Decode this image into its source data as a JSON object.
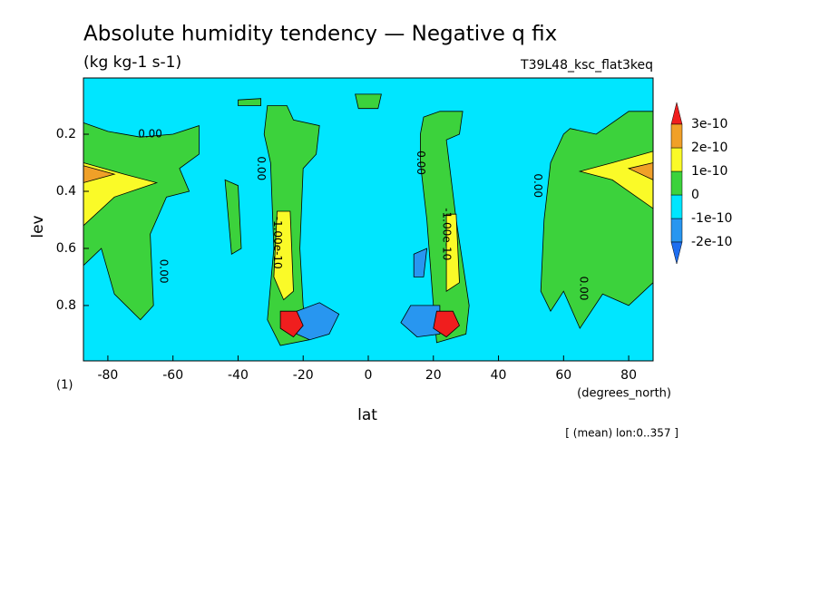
{
  "chart_data": {
    "type": "contour",
    "title": "Absolute humidity tendency — Negative q fix",
    "subtitle": "(kg kg-1 s-1)",
    "run_label": "T39L48_ksc_flat3keq",
    "xlabel": "lat",
    "ylabel": "lev",
    "x_unit": "(degrees_north)",
    "y_unit": "(1)",
    "footer": "[ (mean) lon:0..357 ]",
    "xlim": [
      -87.5,
      87.5
    ],
    "xticks": [
      -80,
      -60,
      -40,
      -20,
      0,
      20,
      40,
      60,
      80
    ],
    "ylim": [
      0.994,
      0.003
    ],
    "yticks": [
      0.2,
      0.4,
      0.6,
      0.8
    ],
    "levels": [
      -2e-10,
      -1e-10,
      0,
      1e-10,
      2e-10,
      3e-10
    ],
    "colors": [
      "#1e6ef0",
      "#2896f0",
      "#00e6ff",
      "#3cd23c",
      "#fafa28",
      "#f0a028",
      "#f01e1e"
    ],
    "regions": [
      {
        "value": -1e-10,
        "lat": [
          -87.5,
          87.5,
          87.5,
          -87.5
        ],
        "lev": [
          0.003,
          0.003,
          0.994,
          0.994
        ]
      },
      {
        "value": 0,
        "lat": [
          -87.5,
          -80,
          -70,
          -60,
          -52,
          -52,
          -58,
          -55,
          -62,
          -67,
          -66,
          -70,
          -78,
          -82,
          -87.5
        ],
        "lev": [
          0.16,
          0.19,
          0.21,
          0.2,
          0.17,
          0.27,
          0.32,
          0.4,
          0.42,
          0.55,
          0.8,
          0.85,
          0.76,
          0.6,
          0.66
        ]
      },
      {
        "value": 1e-10,
        "lat": [
          -87.5,
          -75,
          -65,
          -78,
          -87.5
        ],
        "lev": [
          0.3,
          0.34,
          0.37,
          0.42,
          0.52
        ]
      },
      {
        "value": 2e-10,
        "lat": [
          -87.5,
          -78,
          -87.5
        ],
        "lev": [
          0.31,
          0.34,
          0.37
        ]
      },
      {
        "value": 0,
        "lat": [
          -44,
          -40,
          -39,
          -42
        ],
        "lev": [
          0.36,
          0.38,
          0.6,
          0.62
        ]
      },
      {
        "value": 0,
        "lat": [
          -40,
          -33,
          -33,
          -40
        ],
        "lev": [
          0.08,
          0.075,
          0.1,
          0.1
        ]
      },
      {
        "value": 0,
        "lat": [
          -4,
          4,
          3,
          -3
        ],
        "lev": [
          0.06,
          0.06,
          0.11,
          0.11
        ]
      },
      {
        "value": 0,
        "lat": [
          -31,
          -25,
          -23,
          -15,
          -16,
          -20,
          -21,
          -20,
          -18,
          -27,
          -31,
          -29,
          -30,
          -32
        ],
        "lev": [
          0.1,
          0.1,
          0.15,
          0.17,
          0.27,
          0.32,
          0.6,
          0.8,
          0.92,
          0.94,
          0.85,
          0.6,
          0.3,
          0.2
        ]
      },
      {
        "value": 1e-10,
        "lat": [
          -28,
          -24,
          -23,
          -26,
          -29
        ],
        "lev": [
          0.47,
          0.47,
          0.75,
          0.78,
          0.7
        ]
      },
      {
        "value": -2e-10,
        "lat": [
          -22,
          -15,
          -9,
          -12,
          -18,
          -22
        ],
        "lev": [
          0.82,
          0.79,
          0.83,
          0.9,
          0.92,
          0.9
        ]
      },
      {
        "value": 3e-10,
        "lat": [
          -27,
          -22,
          -20,
          -23,
          -27
        ],
        "lev": [
          0.82,
          0.82,
          0.87,
          0.91,
          0.88
        ]
      },
      {
        "value": 0,
        "lat": [
          17,
          22,
          29,
          28,
          24,
          27,
          31,
          30,
          21,
          20,
          18,
          16,
          16
        ],
        "lev": [
          0.14,
          0.12,
          0.12,
          0.2,
          0.22,
          0.5,
          0.8,
          0.9,
          0.93,
          0.8,
          0.5,
          0.3,
          0.2
        ]
      },
      {
        "value": 1e-10,
        "lat": [
          24,
          27,
          28,
          24
        ],
        "lev": [
          0.48,
          0.48,
          0.72,
          0.75
        ]
      },
      {
        "value": -2e-10,
        "lat": [
          13,
          22,
          22,
          15,
          10
        ],
        "lev": [
          0.8,
          0.8,
          0.9,
          0.91,
          0.86
        ]
      },
      {
        "value": -2e-10,
        "lat": [
          14,
          18,
          17,
          14
        ],
        "lev": [
          0.62,
          0.6,
          0.7,
          0.7
        ]
      },
      {
        "value": 3e-10,
        "lat": [
          21,
          26,
          28,
          24,
          20
        ],
        "lev": [
          0.82,
          0.82,
          0.87,
          0.91,
          0.88
        ]
      },
      {
        "value": 0,
        "lat": [
          87.5,
          80,
          70,
          62,
          60,
          56,
          54,
          53,
          56,
          60,
          65,
          72,
          80,
          87.5
        ],
        "lev": [
          0.12,
          0.12,
          0.2,
          0.18,
          0.2,
          0.3,
          0.5,
          0.75,
          0.82,
          0.75,
          0.88,
          0.76,
          0.8,
          0.72
        ]
      },
      {
        "value": 1e-10,
        "lat": [
          87.5,
          75,
          65,
          75,
          87.5
        ],
        "lev": [
          0.26,
          0.3,
          0.33,
          0.36,
          0.46
        ]
      },
      {
        "value": 2e-10,
        "lat": [
          87.5,
          80,
          87.5
        ],
        "lev": [
          0.3,
          0.32,
          0.36
        ]
      }
    ],
    "contour_labels": [
      {
        "text": "0.00",
        "x": -67,
        "y": 0.2
      },
      {
        "text": "0.00",
        "x": -63,
        "y": 0.68
      },
      {
        "text": "0.00",
        "x": -33,
        "y": 0.32
      },
      {
        "text": "-1.00e-10",
        "x": -28,
        "y": 0.58
      },
      {
        "text": "0.00",
        "x": 16,
        "y": 0.3
      },
      {
        "text": "-1.00e-10",
        "x": 24,
        "y": 0.55
      },
      {
        "text": "0.00",
        "x": 52,
        "y": 0.38
      },
      {
        "text": "0.00",
        "x": 66,
        "y": 0.74
      }
    ]
  }
}
